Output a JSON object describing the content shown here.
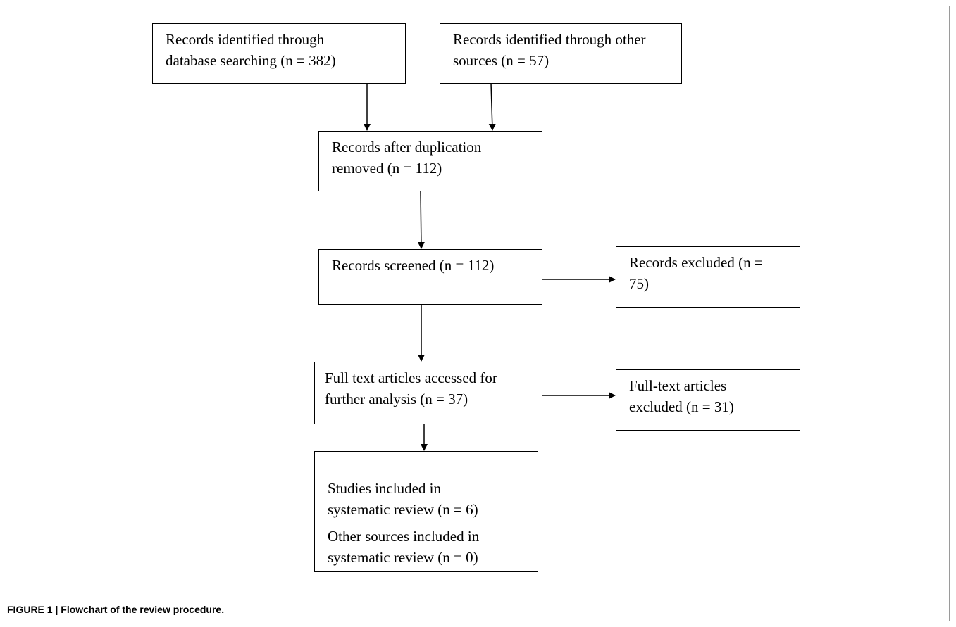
{
  "boxes": {
    "db_search": "Records identified through database searching (n = 382)",
    "other_sources": "Records identified through other sources (n = 57)",
    "after_dup": "Records after duplication removed (n = 112)",
    "screened": "Records screened (n = 112)",
    "excluded": "Records excluded (n = 75)",
    "full_text": "Full text articles accessed for further analysis (n = 37)",
    "ft_excluded": "Full-text articles excluded (n = 31)",
    "included_studies": "Studies included in systematic review (n = 6)",
    "included_other": "Other sources included in systematic review (n = 0)"
  },
  "caption": "FIGURE 1 | Flowchart of the review procedure."
}
